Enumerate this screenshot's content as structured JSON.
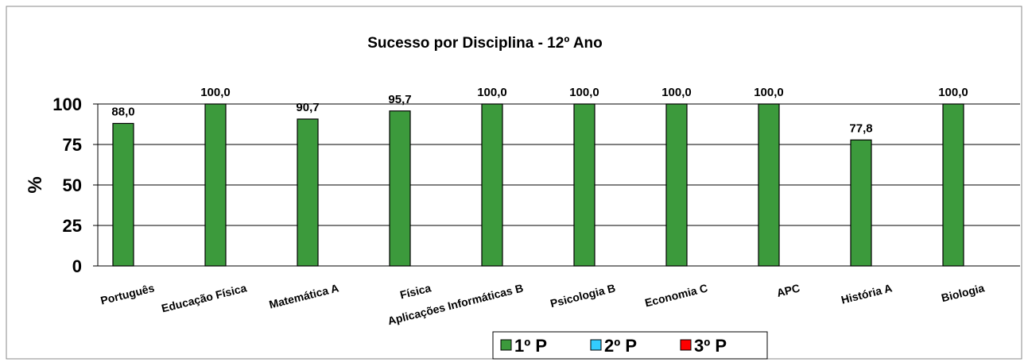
{
  "chart_data": {
    "type": "bar",
    "title": "Sucesso por Disciplina - 12º Ano",
    "y_label": "%",
    "categories": [
      "Português",
      "Educação Física",
      "Matemática A",
      "Física",
      "Aplicações Informáticas B",
      "Psicologia B",
      "Economia C",
      "APC",
      "História A",
      "Biologia"
    ],
    "series": [
      {
        "name": "1º P",
        "color": "#3c9a3c",
        "values": [
          88.0,
          100.0,
          90.7,
          95.7,
          100.0,
          100.0,
          100.0,
          100.0,
          77.8,
          100.0
        ],
        "value_labels": [
          "88,0",
          "100,0",
          "90,7",
          "95,7",
          "100,0",
          "100,0",
          "100,0",
          "100,0",
          "77,8",
          "100,0"
        ]
      },
      {
        "name": "2º P",
        "color": "#33ccff",
        "values": [
          null,
          null,
          null,
          null,
          null,
          null,
          null,
          null,
          null,
          null
        ]
      },
      {
        "name": "3º P",
        "color": "#ff0000",
        "values": [
          null,
          null,
          null,
          null,
          null,
          null,
          null,
          null,
          null,
          null
        ]
      }
    ],
    "ylim": [
      0,
      100
    ],
    "yticks": [
      0,
      25,
      50,
      75,
      100
    ],
    "grid": true,
    "legend": "bottom"
  }
}
